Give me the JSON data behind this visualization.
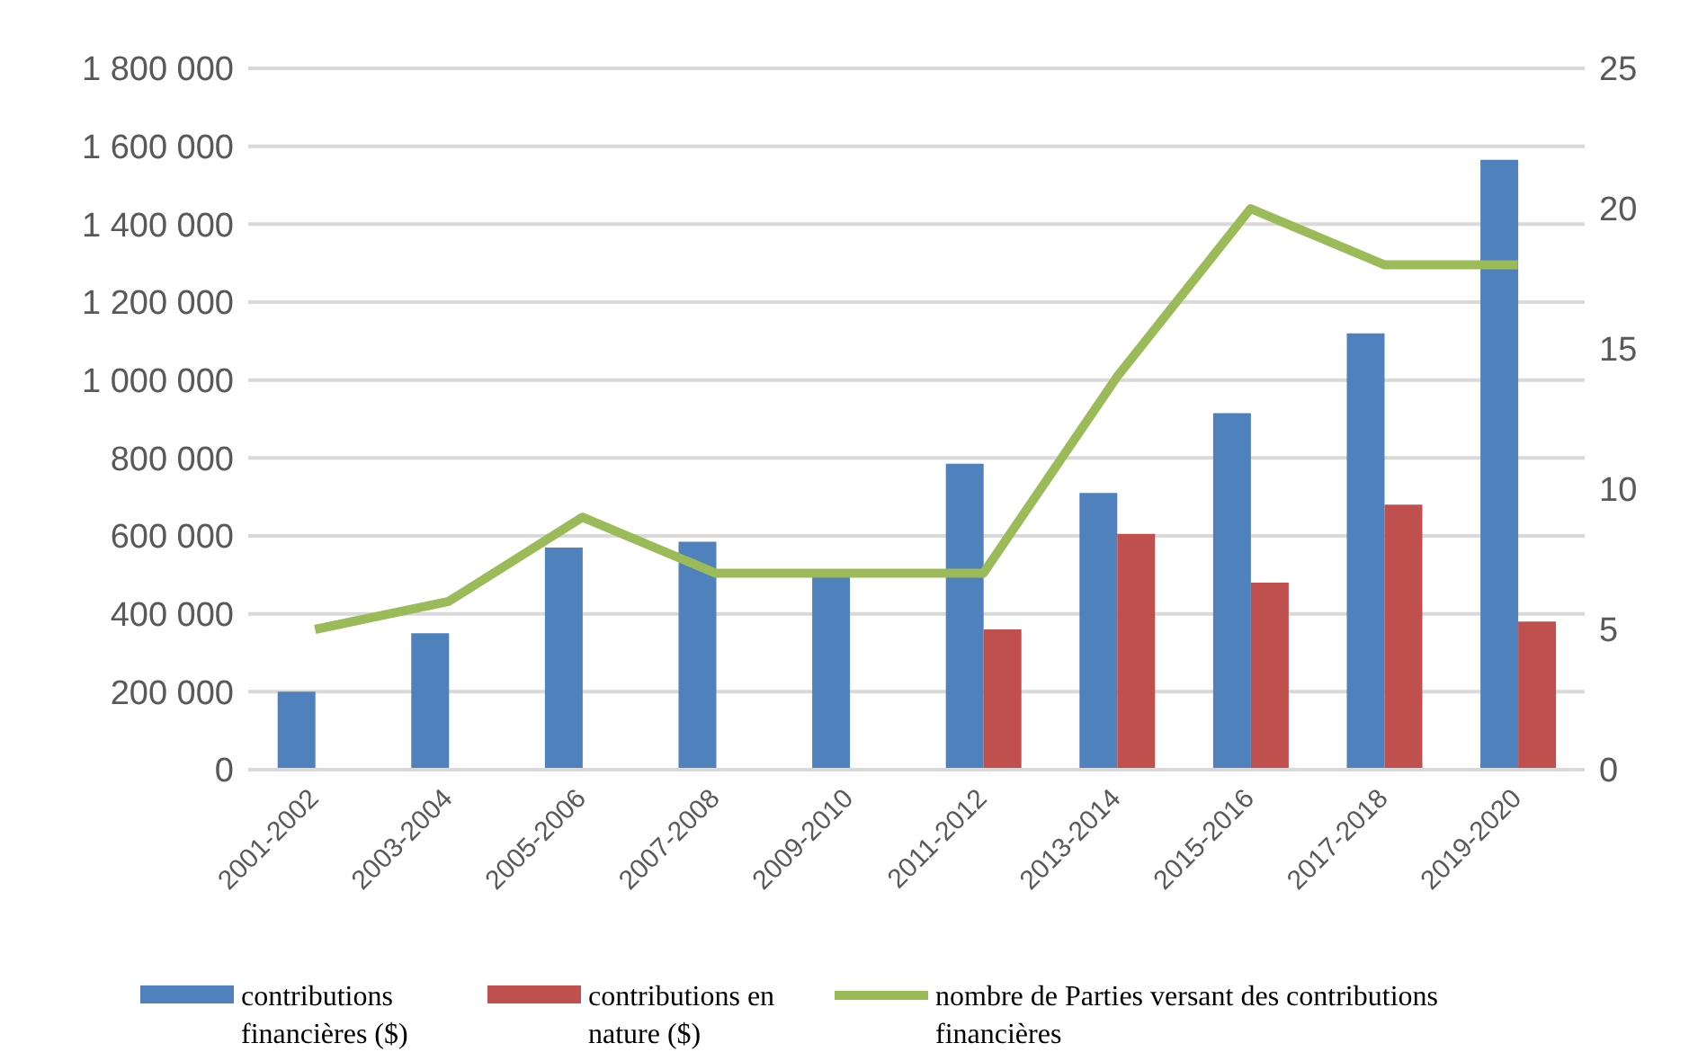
{
  "chart_data": {
    "type": "bar",
    "categories": [
      "2001-2002",
      "2003-2004",
      "2005-2006",
      "2007-2008",
      "2009-2010",
      "2011-2012",
      "2013-2014",
      "2015-2016",
      "2017-2018",
      "2019-2020"
    ],
    "series": [
      {
        "name": "contributions financières ($)",
        "color": "#4f81bd",
        "values": [
          200000,
          350000,
          570000,
          585000,
          495000,
          785000,
          710000,
          915000,
          1120000,
          1565000
        ]
      },
      {
        "name": "contributions en nature ($)",
        "color": "#c0504d",
        "values": [
          null,
          null,
          null,
          null,
          null,
          360000,
          605000,
          480000,
          680000,
          380000
        ]
      },
      {
        "name": "nombre de Parties versant des contributions financières",
        "type": "line",
        "axis": "y2",
        "color": "#9bbb59",
        "values": [
          5,
          6,
          9,
          7,
          7,
          7,
          14,
          20,
          18,
          18
        ]
      }
    ],
    "ylim": [
      0,
      1800000
    ],
    "yticks": [
      {
        "value": 0,
        "label": "0"
      },
      {
        "value": 200000,
        "label": "200 000"
      },
      {
        "value": 400000,
        "label": "400 000"
      },
      {
        "value": 600000,
        "label": "600 000"
      },
      {
        "value": 800000,
        "label": "800 000"
      },
      {
        "value": 1000000,
        "label": "1 000 000"
      },
      {
        "value": 1200000,
        "label": "1 200 000"
      },
      {
        "value": 1400000,
        "label": "1 400 000"
      },
      {
        "value": 1600000,
        "label": "1 600 000"
      },
      {
        "value": 1800000,
        "label": "1 800 000"
      }
    ],
    "y2lim": [
      0,
      25
    ],
    "y2ticks": [
      0,
      5,
      10,
      15,
      20,
      25
    ],
    "grid": "y",
    "legend": "bottom",
    "marker": "none"
  }
}
